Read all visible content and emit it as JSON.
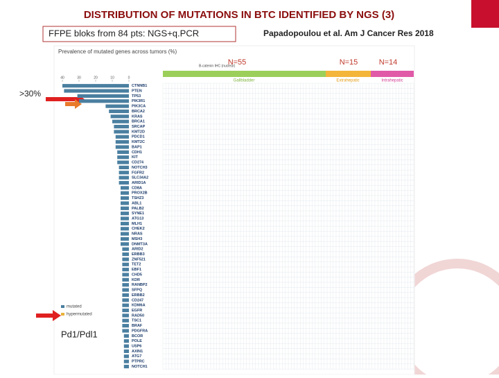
{
  "header": {
    "title": "DISTRIBUTION OF MUTATIONS IN BTC IDENTIFIED BY NGS (3)",
    "method": "FFPE bloks from 84 pts: NGS+q.PCR",
    "reference": "Papadopoulou et al. Am J Cancer Res 2018"
  },
  "annotations": {
    "groups_n": [
      "N=55",
      "N=15",
      "N=14"
    ],
    "threshold": ">30%",
    "target": "Pd1/Pdl1"
  },
  "figure": {
    "title": "Prevalence of mutated genes across tumors (%)",
    "ihc_label": "B-catenin IHC (nuclear)",
    "groups": [
      "Gallbladder",
      "Extrahepatic",
      "Intrahepatic"
    ],
    "legend": [
      "mutated",
      "hypermutated"
    ],
    "xlim": [
      40,
      0
    ],
    "xticks": [
      40,
      30,
      20,
      10,
      0
    ],
    "genes": [
      "CTNNB1",
      "PTEN",
      "TP53",
      "PIK3R1",
      "PIK3CA",
      "BRCA2",
      "KRAS",
      "BRCA1",
      "SRCAP",
      "KMT2D",
      "PDCD1",
      "KMT2C",
      "BAP1",
      "CDH1",
      "KIT",
      "CD274",
      "NOTCH3",
      "FGFR2",
      "SLC34A2",
      "ARID1A",
      "CD8A",
      "PROX2B",
      "TSHZ3",
      "ABL1",
      "PALB2",
      "SYNE1",
      "ATG13",
      "MLH1",
      "CHEK2",
      "NRAS",
      "MSH3",
      "DNMT3A",
      "ARID2",
      "ERBB3",
      "ZNF521",
      "TET2",
      "EBF1",
      "CHD5",
      "KDR",
      "RANBP2",
      "SFPQ",
      "ERBB2",
      "CD247",
      "KDM6A",
      "EGFR",
      "RAD50",
      "TSC1",
      "BRAF",
      "PDGFRA",
      "BCOR",
      "POLE",
      "USP6",
      "AXIN1",
      "ATG7",
      "PTPRC",
      "NOTCH1"
    ],
    "prevalence": [
      40,
      39,
      31,
      30,
      14,
      12,
      11,
      10,
      9,
      9,
      8,
      8,
      8,
      7,
      7,
      7,
      6,
      6,
      6,
      6,
      5,
      5,
      5,
      5,
      5,
      5,
      5,
      5,
      5,
      5,
      5,
      5,
      4,
      4,
      4,
      4,
      4,
      4,
      4,
      4,
      4,
      4,
      4,
      4,
      4,
      4,
      4,
      4,
      4,
      3,
      3,
      3,
      3,
      3,
      3,
      3
    ]
  }
}
